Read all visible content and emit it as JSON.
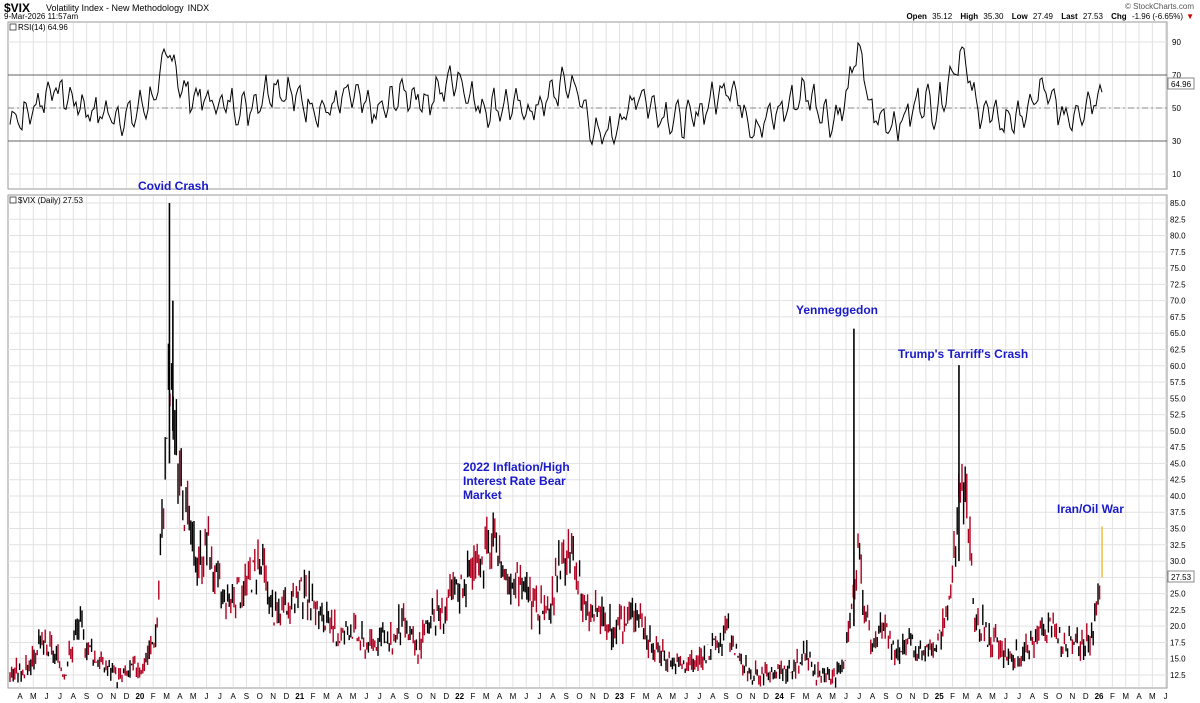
{
  "header": {
    "symbol": "$VIX",
    "description": "Volatility Index - New Methodology",
    "exchange": "INDX",
    "date": "9-Mar-2026 11:57am",
    "brand": "© StockCharts.com",
    "open_label": "Open",
    "open": "35.12",
    "high_label": "High",
    "high": "35.30",
    "low_label": "Low",
    "low": "27.49",
    "last_label": "Last",
    "last": "27.53",
    "chg_label": "Chg",
    "chg": "-1.96 (-6.65%)"
  },
  "colors": {
    "up": "#000000",
    "down": "#b00020",
    "annotation": "#1a1ac8",
    "grid": "#e2e2e2",
    "last_bar": "#f0c24a"
  },
  "rsi_panel": {
    "label": "RSI(14) 64.96",
    "current_tag": "64.96",
    "y_ticks": [
      "90",
      "70",
      "50",
      "30",
      "10"
    ],
    "levels": [
      70,
      50,
      30
    ],
    "ylim": [
      0,
      100
    ]
  },
  "price_panel": {
    "label": "$VIX (Daily) 27.53",
    "current_tag": "27.53",
    "y_ticks": [
      "85.0",
      "82.5",
      "80.0",
      "77.5",
      "75.0",
      "72.5",
      "70.0",
      "67.5",
      "65.0",
      "62.5",
      "60.0",
      "57.5",
      "55.0",
      "52.5",
      "50.0",
      "47.5",
      "45.0",
      "42.5",
      "40.0",
      "37.5",
      "35.0",
      "32.5",
      "30.0",
      "27.5",
      "25.0",
      "22.5",
      "20.0",
      "17.5",
      "15.0",
      "12.5"
    ]
  },
  "annotations": [
    {
      "text": "Covid Crash"
    },
    {
      "text": "2022 Inflation/High\nInterest Rate Bear\nMarket"
    },
    {
      "text": "Yenmeggedon"
    },
    {
      "text": "Trump's Tarriff's Crash"
    },
    {
      "text": "Iran/Oil War"
    }
  ],
  "x_axis_labels": [
    "A",
    "M",
    "J",
    "J",
    "A",
    "S",
    "O",
    "N",
    "D",
    "20",
    "F",
    "M",
    "A",
    "M",
    "J",
    "J",
    "A",
    "S",
    "O",
    "N",
    "D",
    "21",
    "F",
    "M",
    "A",
    "M",
    "J",
    "J",
    "A",
    "S",
    "O",
    "N",
    "D",
    "22",
    "F",
    "M",
    "A",
    "M",
    "J",
    "J",
    "A",
    "S",
    "O",
    "N",
    "D",
    "23",
    "F",
    "M",
    "A",
    "M",
    "J",
    "J",
    "A",
    "S",
    "O",
    "N",
    "D",
    "24",
    "F",
    "M",
    "A",
    "M",
    "J",
    "J",
    "A",
    "S",
    "O",
    "N",
    "D",
    "25",
    "F",
    "M",
    "A",
    "M",
    "J",
    "J",
    "A",
    "S",
    "O",
    "N",
    "D",
    "26",
    "F",
    "M",
    "A",
    "M",
    "J"
  ],
  "chart_data": [
    {
      "type": "line",
      "title": "RSI(14)",
      "ylim": [
        0,
        100
      ],
      "reference_lines": [
        70,
        50,
        30
      ],
      "x": [
        "2019-04",
        "2019-06",
        "2019-09",
        "2019-12",
        "2020-01",
        "2020-02",
        "2020-03",
        "2020-04",
        "2020-06",
        "2020-09",
        "2020-11",
        "2021-01",
        "2021-03",
        "2021-05",
        "2021-07",
        "2021-09",
        "2021-11",
        "2022-01",
        "2022-03",
        "2022-05",
        "2022-07",
        "2022-09",
        "2022-10",
        "2022-12",
        "2023-02",
        "2023-03",
        "2023-05",
        "2023-07",
        "2023-09",
        "2023-10",
        "2023-12",
        "2024-02",
        "2024-04",
        "2024-06",
        "2024-07",
        "2024-08",
        "2024-09",
        "2024-11",
        "2025-01",
        "2025-02",
        "2025-04",
        "2025-05",
        "2025-07",
        "2025-09",
        "2025-10",
        "2025-12",
        "2026-02",
        "2026-03"
      ],
      "y": [
        45,
        62,
        48,
        44,
        52,
        58,
        88,
        60,
        54,
        50,
        64,
        55,
        48,
        58,
        46,
        60,
        54,
        70,
        50,
        52,
        48,
        62,
        66,
        30,
        44,
        60,
        46,
        42,
        56,
        66,
        38,
        48,
        60,
        42,
        52,
        88,
        46,
        40,
        56,
        48,
        86,
        52,
        42,
        46,
        62,
        44,
        55,
        65
      ]
    },
    {
      "type": "line",
      "title": "$VIX (Daily)",
      "ylabel": "",
      "ylim": [
        10,
        85
      ],
      "x": [
        "2019-04",
        "2019-05",
        "2019-06",
        "2019-07",
        "2019-08",
        "2019-09",
        "2019-10",
        "2019-11",
        "2019-12",
        "2020-01",
        "2020-02",
        "2020-03",
        "2020-04",
        "2020-05",
        "2020-06",
        "2020-07",
        "2020-08",
        "2020-09",
        "2020-10",
        "2020-11",
        "2020-12",
        "2021-01",
        "2021-02",
        "2021-03",
        "2021-04",
        "2021-05",
        "2021-06",
        "2021-07",
        "2021-08",
        "2021-09",
        "2021-10",
        "2021-11",
        "2021-12",
        "2022-01",
        "2022-02",
        "2022-03",
        "2022-04",
        "2022-05",
        "2022-06",
        "2022-07",
        "2022-08",
        "2022-09",
        "2022-10",
        "2022-11",
        "2022-12",
        "2023-01",
        "2023-02",
        "2023-03",
        "2023-04",
        "2023-05",
        "2023-06",
        "2023-07",
        "2023-08",
        "2023-09",
        "2023-10",
        "2023-11",
        "2023-12",
        "2024-01",
        "2024-02",
        "2024-03",
        "2024-04",
        "2024-05",
        "2024-06",
        "2024-07",
        "2024-08",
        "2024-09",
        "2024-10",
        "2024-11",
        "2024-12",
        "2025-01",
        "2025-02",
        "2025-03",
        "2025-04",
        "2025-05",
        "2025-06",
        "2025-07",
        "2025-08",
        "2025-09",
        "2025-10",
        "2025-11",
        "2025-12",
        "2026-01",
        "2026-02",
        "2026-03"
      ],
      "y": [
        13,
        17,
        16,
        13,
        20,
        16,
        14,
        12,
        13,
        14,
        19,
        57,
        40,
        30,
        32,
        25,
        24,
        27,
        30,
        22,
        22,
        25,
        24,
        20,
        18,
        20,
        17,
        18,
        17,
        21,
        16,
        21,
        22,
        25,
        28,
        30,
        32,
        28,
        27,
        23,
        21,
        28,
        31,
        22,
        22,
        19,
        20,
        23,
        17,
        16,
        14,
        14,
        15,
        17,
        19,
        14,
        12,
        13,
        13,
        13,
        16,
        12,
        12,
        15,
        30,
        17,
        20,
        15,
        17,
        16,
        17,
        22,
        45,
        22,
        18,
        16,
        15,
        16,
        19,
        20,
        17,
        17,
        19,
        28
      ]
    }
  ]
}
